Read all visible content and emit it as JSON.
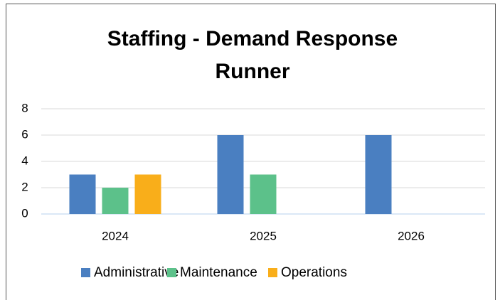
{
  "chart_data": {
    "type": "bar",
    "title": "Staffing - Demand Response Runner",
    "categories": [
      "2024",
      "2025",
      "2026"
    ],
    "series": [
      {
        "name": "Administrative",
        "color": "#4a7fc1",
        "values": [
          3,
          6,
          6
        ]
      },
      {
        "name": "Maintenance",
        "color": "#5cc18a",
        "values": [
          2,
          3,
          0
        ]
      },
      {
        "name": "Operations",
        "color": "#f9ae1a",
        "values": [
          3,
          0,
          0
        ]
      }
    ],
    "ylim": [
      0,
      8
    ],
    "yticks": [
      0,
      2,
      4,
      6,
      8
    ],
    "grid": true,
    "legend": "bottom"
  }
}
